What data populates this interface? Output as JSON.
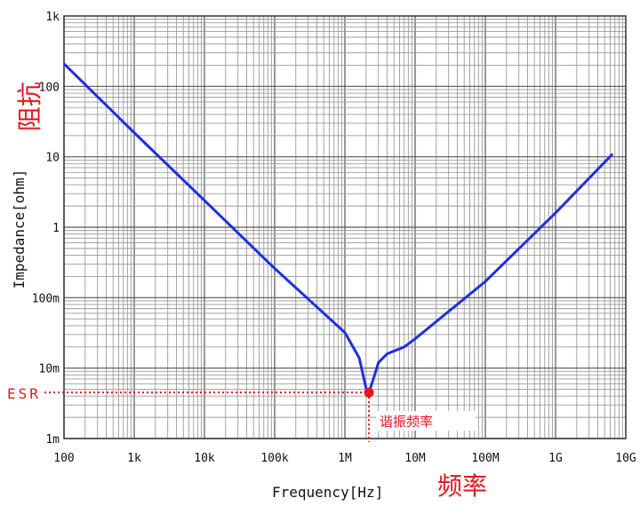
{
  "chart_data": {
    "type": "line",
    "title": "",
    "xlabel": "Frequency[Hz]",
    "ylabel": "Impedance[ohm]",
    "x_scale": "log",
    "y_scale": "log",
    "xlim": [
      100,
      10000000000
    ],
    "ylim": [
      0.001,
      1000
    ],
    "x_ticks": [
      100,
      1000,
      10000,
      100000,
      1000000,
      10000000,
      100000000,
      1000000000,
      10000000000
    ],
    "x_tick_labels": [
      "100",
      "1k",
      "10k",
      "100k",
      "1M",
      "10M",
      "100M",
      "1G",
      "10G"
    ],
    "y_ticks": [
      0.001,
      0.01,
      0.1,
      1,
      10,
      100,
      1000
    ],
    "y_tick_labels": [
      "1m",
      "10m",
      "100m",
      "1",
      "10",
      "100",
      "1k"
    ],
    "grid": true,
    "series": [
      {
        "color": "#1f2fe0",
        "points": [
          [
            100,
            210
          ],
          [
            1000,
            22
          ],
          [
            10000,
            2.4
          ],
          [
            100000,
            0.26
          ],
          [
            1000000,
            0.032
          ],
          [
            1600000,
            0.014
          ],
          [
            2000000,
            0.0052
          ],
          [
            2200000,
            0.0045
          ],
          [
            2600000,
            0.0075
          ],
          [
            3000000,
            0.012
          ],
          [
            4000000,
            0.016
          ],
          [
            7000000,
            0.02
          ],
          [
            10000000,
            0.026
          ],
          [
            100000000,
            0.17
          ],
          [
            1000000000,
            1.6
          ],
          [
            6500000000,
            11
          ]
        ]
      }
    ],
    "annotations": {
      "esr_label": "ESR",
      "esr_value": 0.0045,
      "resonance_frequency": 2200000,
      "resonance_label": "谐振频率",
      "y_axis_cn": "阻抗",
      "x_axis_cn": "频率",
      "marker_color": "#e8141b"
    }
  }
}
